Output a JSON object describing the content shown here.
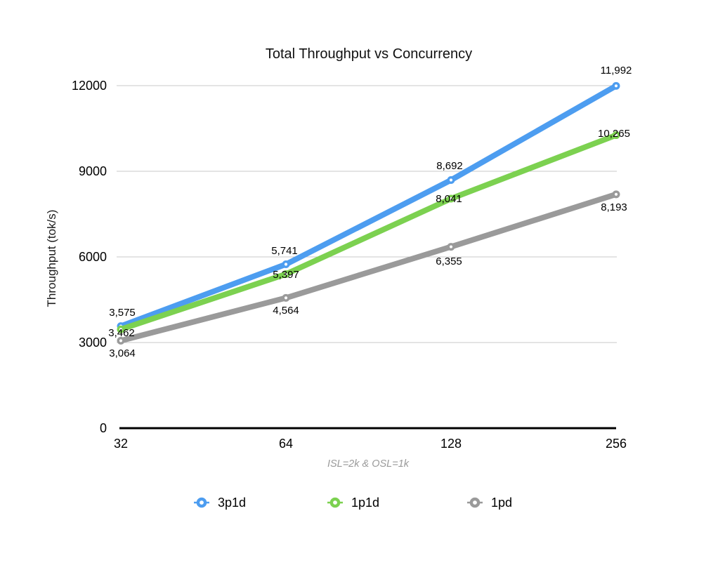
{
  "title": "Total Throughput vs Concurrency",
  "chart_data": {
    "type": "line",
    "title": "Total Throughput vs Concurrency",
    "ylabel": "Throughput (tok/s)",
    "xlabel": "ISL=2k & OSL=1k",
    "categories": [
      "32",
      "64",
      "128",
      "256"
    ],
    "y_ticks": [
      "12000",
      "9000",
      "6000",
      "3000",
      "0"
    ],
    "y_tick_values": [
      12000,
      9000,
      6000,
      3000,
      0
    ],
    "ylim": [
      0,
      12000
    ],
    "grid": true,
    "legend_position": "bottom",
    "series": [
      {
        "name": "3p1d",
        "color": "#4d9df0",
        "values": [
          3575,
          5741,
          8692,
          11992
        ],
        "labels": [
          "3,575",
          "5,741",
          "8,692",
          "11,992"
        ]
      },
      {
        "name": "1p1d",
        "color": "#7cd150",
        "values": [
          3462,
          5397,
          8041,
          10265
        ],
        "labels": [
          "3,462",
          "5,397",
          "8,041",
          "10,265"
        ]
      },
      {
        "name": "1pd",
        "color": "#9a9a9a",
        "values": [
          3064,
          4564,
          6355,
          8193
        ],
        "labels": [
          "3,064",
          "4,564",
          "6,355",
          "8,193"
        ]
      }
    ],
    "colors": {
      "gridline": "#c9c9c9",
      "axis": "#000000",
      "subtitle_text": "#9a9a9a"
    }
  }
}
